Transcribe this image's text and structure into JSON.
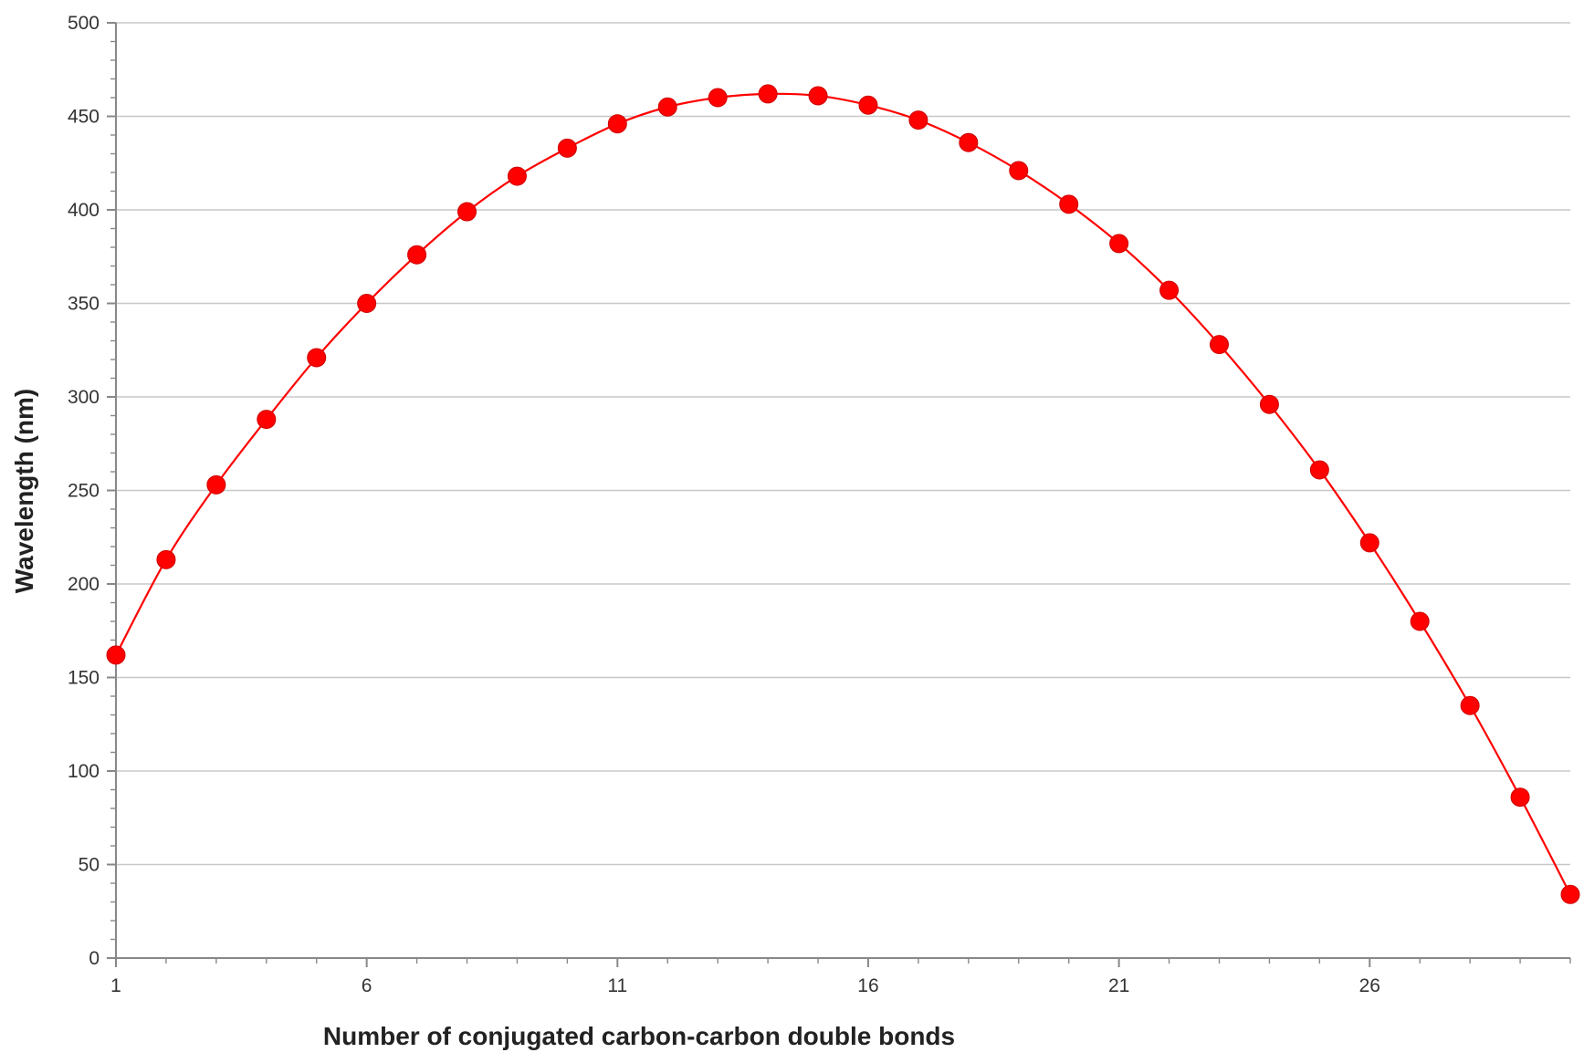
{
  "chart_data": {
    "type": "line",
    "title": "",
    "xlabel": "Number of conjugated carbon-carbon double bonds",
    "ylabel": "Wavelength (nm)",
    "xlim": [
      1,
      30
    ],
    "ylim": [
      0,
      500
    ],
    "x_ticks": [
      1,
      6,
      11,
      16,
      21,
      26
    ],
    "x_tick_labels": [
      "1",
      "6",
      "11",
      "16",
      "21",
      "26"
    ],
    "y_ticks": [
      0,
      50,
      100,
      150,
      200,
      250,
      300,
      350,
      400,
      450,
      500
    ],
    "y_tick_labels": [
      "0",
      "50",
      "100",
      "150",
      "200",
      "250",
      "300",
      "350",
      "400",
      "450",
      "500"
    ],
    "grid": "horizontal major gridlines",
    "legend": "none",
    "series": [
      {
        "color": "#ff0000",
        "marker": "circle",
        "x": [
          1,
          2,
          3,
          4,
          5,
          6,
          7,
          8,
          9,
          10,
          11,
          12,
          13,
          14,
          15,
          16,
          17,
          18,
          19,
          20,
          21,
          22,
          23,
          24,
          25,
          26,
          27,
          28,
          29,
          30
        ],
        "y": [
          162,
          213,
          253,
          288,
          321,
          350,
          376,
          399,
          418,
          433,
          446,
          455,
          460,
          462,
          461,
          456,
          448,
          436,
          421,
          403,
          382,
          357,
          328,
          296,
          261,
          222,
          180,
          135,
          86,
          34
        ]
      }
    ]
  }
}
